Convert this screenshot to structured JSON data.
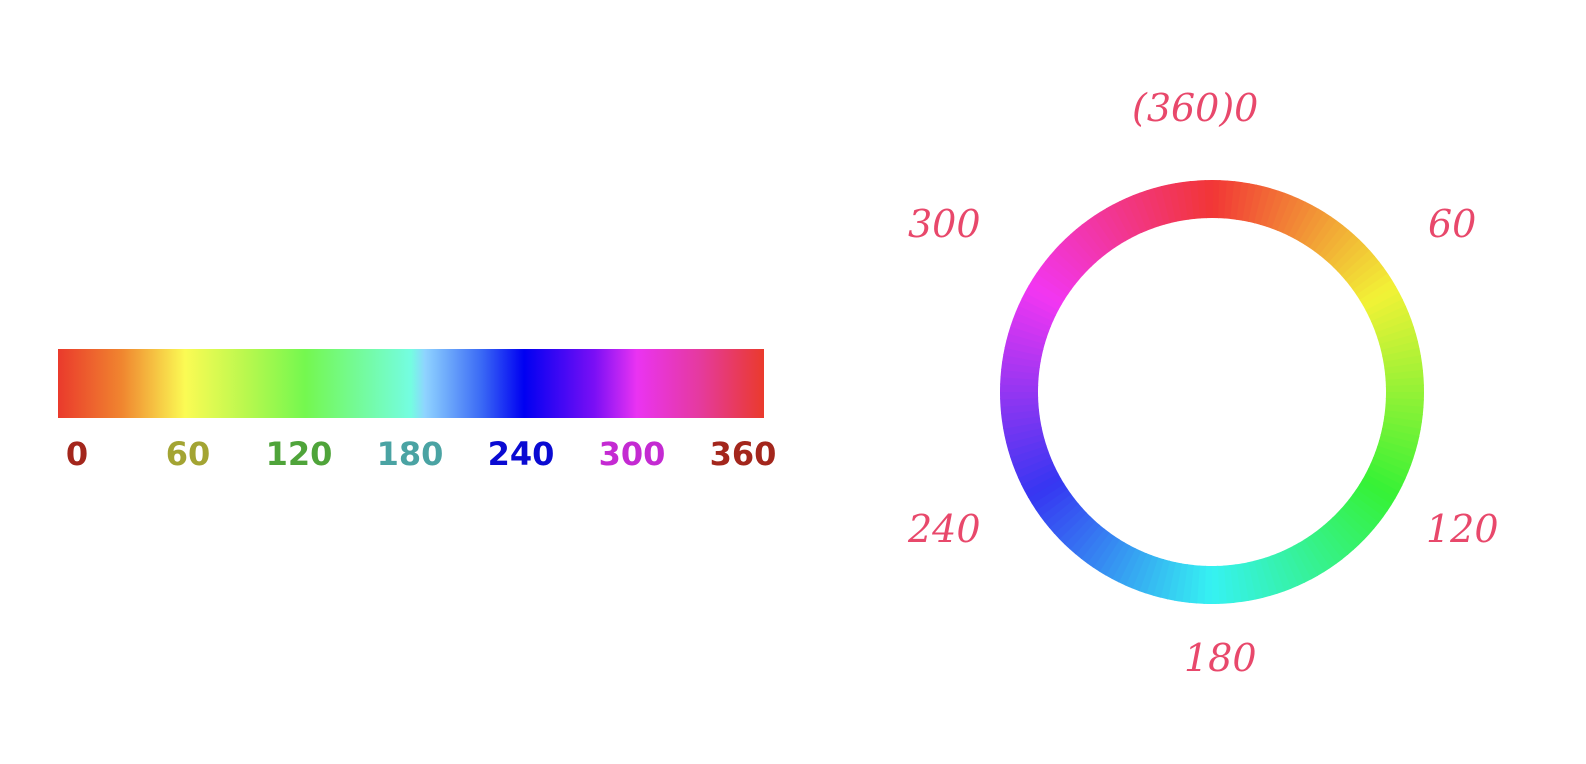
{
  "hue_bar": {
    "ticks": [
      {
        "label": "0",
        "color": "#a3261c"
      },
      {
        "label": "60",
        "color": "#a3a433"
      },
      {
        "label": "120",
        "color": "#4fa43a"
      },
      {
        "label": "180",
        "color": "#4aa3a3"
      },
      {
        "label": "240",
        "color": "#0a0ad2"
      },
      {
        "label": "300",
        "color": "#c42ad2"
      },
      {
        "label": "360",
        "color": "#a3261c"
      }
    ]
  },
  "hue_wheel": {
    "label_color": "#e8486b",
    "labels": {
      "top": "(360)0",
      "top_right": "60",
      "bottom_right": "120",
      "bottom": "180",
      "bottom_left": "240",
      "top_left": "300"
    }
  }
}
